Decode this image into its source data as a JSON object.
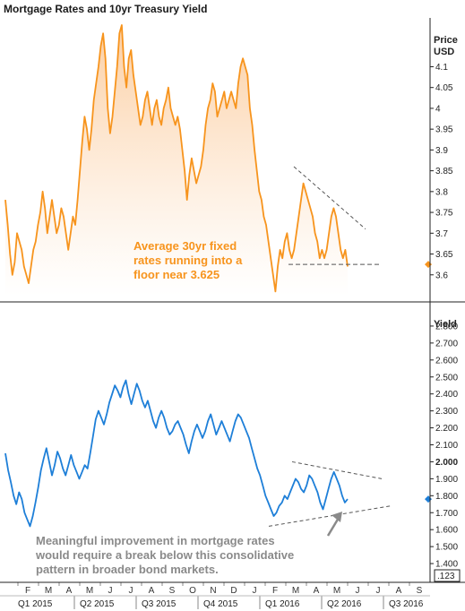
{
  "title": "Mortgage Rates and 10yr Treasury Yield",
  "chart_data": [
    {
      "type": "area",
      "axis_title_lines": [
        "Price",
        "USD"
      ],
      "ylim": [
        3.55,
        4.2
      ],
      "yticks": [
        "3.6",
        "3.65",
        "3.7",
        "3.75",
        "3.8",
        "3.85",
        "3.9",
        "3.95",
        "4",
        "4.05",
        "4.1"
      ],
      "current_value": 3.625,
      "colors": {
        "line": "#f7941d",
        "fill_top": "#fbc998",
        "fill_bottom": "#ffffff"
      },
      "series": [
        {
          "values": [
            3.78,
            3.72,
            3.65,
            3.6,
            3.63,
            3.7,
            3.68,
            3.66,
            3.62,
            3.6,
            3.58,
            3.62,
            3.66,
            3.68,
            3.72,
            3.75,
            3.8,
            3.76,
            3.7,
            3.74,
            3.78,
            3.74,
            3.7,
            3.72,
            3.76,
            3.74,
            3.7,
            3.66,
            3.7,
            3.74,
            3.72,
            3.78,
            3.85,
            3.92,
            3.98,
            3.95,
            3.9,
            3.95,
            4.02,
            4.06,
            4.1,
            4.15,
            4.18,
            4.12,
            4.0,
            3.94,
            3.98,
            4.04,
            4.1,
            4.18,
            4.2,
            4.1,
            4.05,
            4.12,
            4.14,
            4.08,
            4.04,
            4.0,
            3.96,
            3.98,
            4.02,
            4.04,
            4.0,
            3.96,
            4.0,
            4.02,
            3.98,
            3.96,
            4.0,
            4.02,
            4.05,
            4.0,
            3.98,
            3.96,
            3.98,
            3.95,
            3.9,
            3.85,
            3.78,
            3.84,
            3.88,
            3.85,
            3.82,
            3.84,
            3.86,
            3.9,
            3.96,
            4.0,
            4.02,
            4.06,
            4.04,
            3.98,
            4.0,
            4.02,
            4.04,
            4.0,
            4.02,
            4.04,
            4.02,
            4.0,
            4.06,
            4.1,
            4.12,
            4.1,
            4.08,
            4.0,
            3.96,
            3.9,
            3.85,
            3.8,
            3.78,
            3.74,
            3.72,
            3.68,
            3.64,
            3.6,
            3.56,
            3.62,
            3.66,
            3.64,
            3.68,
            3.7,
            3.66,
            3.64,
            3.66,
            3.7,
            3.74,
            3.78,
            3.82,
            3.8,
            3.78,
            3.76,
            3.74,
            3.7,
            3.68,
            3.64,
            3.66,
            3.64,
            3.66,
            3.7,
            3.74,
            3.76,
            3.74,
            3.7,
            3.66,
            3.64,
            3.66,
            3.62
          ]
        }
      ],
      "annotation_lines": [
        "Average 30yr fixed",
        "rates running into a",
        "floor near 3.625"
      ]
    },
    {
      "type": "line",
      "axis_title_lines": [
        "Yield"
      ],
      "ylim": [
        1.3,
        2.9
      ],
      "yticks": [
        "1.400",
        "1.500",
        "1.600",
        "1.700",
        "1.800",
        "1.900",
        "2.000",
        "2.100",
        "2.200",
        "2.300",
        "2.400",
        "2.500",
        "2.600",
        "2.700",
        "2.800"
      ],
      "bold_tick": "2.000",
      "current_value": 1.78,
      "colors": {
        "line": "#1e7fd8"
      },
      "series": [
        {
          "values": [
            2.05,
            1.95,
            1.88,
            1.8,
            1.75,
            1.82,
            1.78,
            1.7,
            1.66,
            1.62,
            1.68,
            1.76,
            1.85,
            1.95,
            2.02,
            2.08,
            2.0,
            1.92,
            1.98,
            2.06,
            2.02,
            1.96,
            1.92,
            1.98,
            2.04,
            1.98,
            1.94,
            1.9,
            1.94,
            1.98,
            1.96,
            2.05,
            2.15,
            2.25,
            2.3,
            2.26,
            2.22,
            2.28,
            2.35,
            2.4,
            2.45,
            2.42,
            2.38,
            2.44,
            2.48,
            2.4,
            2.34,
            2.4,
            2.46,
            2.42,
            2.36,
            2.32,
            2.36,
            2.3,
            2.24,
            2.2,
            2.26,
            2.3,
            2.26,
            2.2,
            2.16,
            2.18,
            2.22,
            2.24,
            2.2,
            2.16,
            2.1,
            2.05,
            2.12,
            2.18,
            2.22,
            2.18,
            2.14,
            2.18,
            2.24,
            2.28,
            2.22,
            2.16,
            2.2,
            2.24,
            2.2,
            2.16,
            2.12,
            2.18,
            2.24,
            2.28,
            2.26,
            2.22,
            2.18,
            2.14,
            2.08,
            2.02,
            1.96,
            1.92,
            1.86,
            1.8,
            1.76,
            1.72,
            1.68,
            1.7,
            1.74,
            1.76,
            1.8,
            1.78,
            1.82,
            1.86,
            1.9,
            1.88,
            1.84,
            1.82,
            1.86,
            1.92,
            1.9,
            1.86,
            1.82,
            1.76,
            1.72,
            1.78,
            1.84,
            1.9,
            1.94,
            1.9,
            1.86,
            1.8,
            1.76,
            1.78
          ],
          "start_index": 0
        }
      ],
      "annotation_lines": [
        "Meaningful improvement in mortgage rates",
        "would require a break below this consolidative",
        "pattern in broader bond markets."
      ],
      "current_label": ".123"
    }
  ],
  "x_axis": {
    "months": [
      "F",
      "M",
      "A",
      "M",
      "J",
      "J",
      "A",
      "S",
      "O",
      "N",
      "D",
      "J",
      "F",
      "M",
      "A",
      "M",
      "J",
      "J",
      "A",
      "S"
    ],
    "quarters": [
      "Q1 2015",
      "Q2 2015",
      "Q3 2015",
      "Q4 2015",
      "Q1 2016",
      "Q2 2016",
      "Q3 2016"
    ]
  }
}
